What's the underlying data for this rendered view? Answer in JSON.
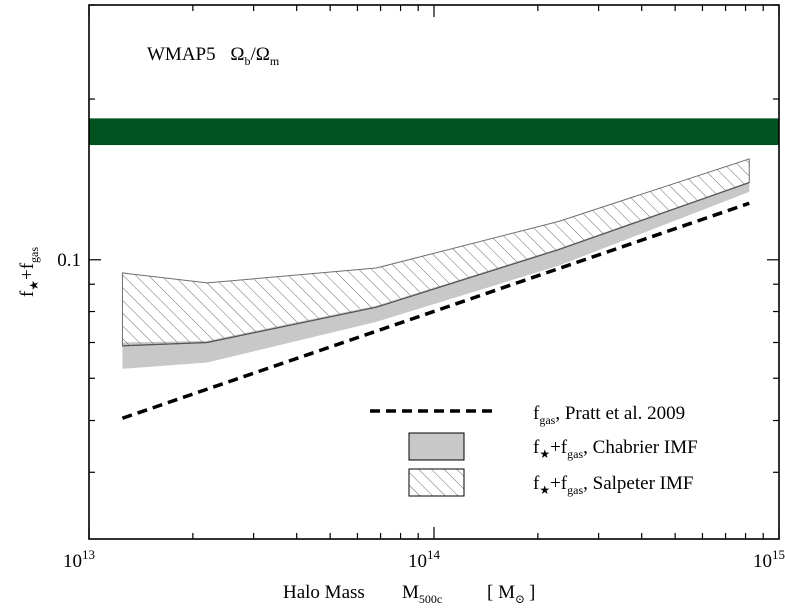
{
  "chart_data": {
    "type": "area",
    "title": "",
    "x_scale": "log",
    "y_scale": "log",
    "xlim": [
      10000000000000.0,
      1000000000000000.0
    ],
    "ylim": [
      0.03,
      0.3
    ],
    "x_ticks": [
      {
        "value": 10000000000000.0,
        "mantissa": "10",
        "exp": "13"
      },
      {
        "value": 100000000000000.0,
        "mantissa": "10",
        "exp": "14"
      },
      {
        "value": 1000000000000000.0,
        "mantissa": "10",
        "exp": "15"
      }
    ],
    "y_tick_labels": [
      {
        "value": 0.1,
        "label": "0.1"
      }
    ],
    "y_minor_ticks": [
      0.04,
      0.05,
      0.06,
      0.07,
      0.08,
      0.09,
      0.2,
      0.3
    ],
    "xlabel": {
      "prefix": "Halo Mass",
      "sym": "M",
      "sub": "500c",
      "unit_open": "[ M",
      "unit_sub": "⊙",
      "unit_close": "]"
    },
    "ylabel": {
      "a": "f",
      "a_sub": "★",
      "plus": "+f",
      "b_sub": "gas"
    },
    "wmap_label": {
      "text": "WMAP5",
      "o1": "Ω",
      "o1_sub": "b",
      "slash": "/Ω",
      "o2_sub": "m"
    },
    "wmap_band": {
      "y_low": 0.164,
      "y_high": 0.184,
      "color": "#00531f"
    },
    "fgas_pratt": {
      "x": [
        12500000000000.0,
        820000000000000.0
      ],
      "y": [
        0.0505,
        0.1276
      ],
      "style": "dashed",
      "color": "#000000"
    },
    "chabrier_band": {
      "color": "#c8c8c8",
      "x": [
        12500000000000.0,
        22000000000000.0,
        68000000000000.0,
        230000000000000.0,
        820000000000000.0
      ],
      "y_low": [
        0.0625,
        0.0642,
        0.0765,
        0.0975,
        0.134
      ],
      "y_high": [
        0.07,
        0.0705,
        0.082,
        0.105,
        0.14
      ]
    },
    "salpeter_band": {
      "color": "#6e6e6e",
      "x": [
        12500000000000.0,
        22000000000000.0,
        68000000000000.0,
        230000000000000.0,
        820000000000000.0
      ],
      "y_low": [
        0.069,
        0.07,
        0.0815,
        0.1045,
        0.1395
      ],
      "y_high": [
        0.0945,
        0.0905,
        0.0965,
        0.118,
        0.1545
      ]
    },
    "legend": {
      "placement": "bottom-right",
      "entries": [
        {
          "kind": "dashed",
          "sym": "f",
          "sub": "gas",
          "rest": ", Pratt et al. 2009"
        },
        {
          "kind": "gray",
          "sym": "f",
          "sub": "★",
          "mid": "+f",
          "sub2": "gas",
          "rest": ", Chabrier IMF"
        },
        {
          "kind": "hatch",
          "sym": "f",
          "sub": "★",
          "mid": "+f",
          "sub2": "gas",
          "rest": ", Salpeter IMF"
        }
      ]
    }
  }
}
